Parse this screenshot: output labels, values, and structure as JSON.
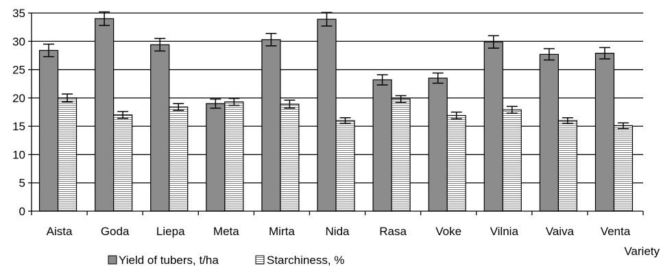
{
  "chart_data": {
    "type": "bar",
    "categories": [
      "Aista",
      "Goda",
      "Liepa",
      "Meta",
      "Mirta",
      "Nida",
      "Rasa",
      "Voke",
      "Vilnia",
      "Vaiva",
      "Venta"
    ],
    "series": [
      {
        "name": "Yield of tubers, t/ha",
        "values": [
          28.4,
          34.0,
          29.4,
          19.0,
          30.3,
          33.9,
          23.2,
          23.5,
          29.9,
          27.7,
          27.9
        ],
        "errors": [
          1.1,
          1.2,
          1.1,
          0.8,
          1.1,
          1.2,
          0.9,
          0.9,
          1.1,
          1.0,
          1.0
        ],
        "color": "#8c8c8c",
        "pattern": "solid"
      },
      {
        "name": "Starchiness, %",
        "values": [
          20.0,
          17.0,
          18.4,
          19.3,
          18.9,
          16.0,
          19.8,
          16.9,
          17.9,
          16.0,
          15.1
        ],
        "errors": [
          0.7,
          0.6,
          0.6,
          0.6,
          0.7,
          0.5,
          0.6,
          0.6,
          0.6,
          0.5,
          0.5
        ],
        "color": "#ffffff",
        "pattern": "horizontal-stripes"
      }
    ],
    "title": "",
    "xlabel": "Variety",
    "ylabel": "",
    "ylim": [
      0,
      35
    ],
    "yticks": [
      "0",
      "5",
      "10",
      "15",
      "20",
      "25",
      "30",
      "35"
    ],
    "grid": true,
    "legend_position": "bottom-left"
  }
}
